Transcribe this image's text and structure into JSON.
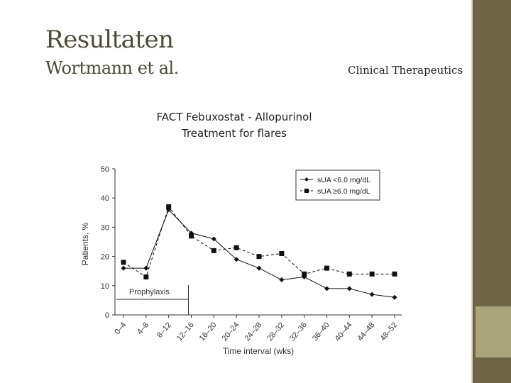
{
  "slide": {
    "title": "Resultaten",
    "author": "Wortmann et al.",
    "journal": "Clinical Therapeutics",
    "chart_heading_line1": "FACT  Febuxostat - Allopurinol",
    "chart_heading_line2": "Treatment for flares"
  },
  "colors": {
    "sidebar": "#6e6446",
    "sidebar_accent": "#a9a57b",
    "title_text": "#4d4a38"
  },
  "chart_data": {
    "type": "line",
    "xlabel": "Time interval (wks)",
    "ylabel": "Patients, %",
    "ylim": [
      0,
      50
    ],
    "yticks": [
      0,
      10,
      20,
      30,
      40,
      50
    ],
    "grid": false,
    "legend_position": "top-right",
    "categories": [
      "0–4",
      "4–8",
      "8–12",
      "12–16",
      "16–20",
      "20–24",
      "24–28",
      "28–32",
      "32–36",
      "36–40",
      "40–44",
      "44–48",
      "48–52"
    ],
    "series": [
      {
        "name": "sUA <6.0 mg/dL",
        "marker": "diamond",
        "style": "solid",
        "values": [
          16,
          16,
          36,
          28,
          26,
          19,
          16,
          12,
          13,
          9,
          9,
          7,
          6
        ]
      },
      {
        "name": "sUA ≥6.0 mg/dL",
        "marker": "square",
        "style": "dashed",
        "values": [
          18,
          13,
          37,
          27,
          22,
          23,
          20,
          21,
          14,
          16,
          14,
          14,
          14
        ]
      }
    ],
    "annotation": {
      "label": "Prophylaxis",
      "from_category": "0–4",
      "to_category": "12–16"
    }
  }
}
